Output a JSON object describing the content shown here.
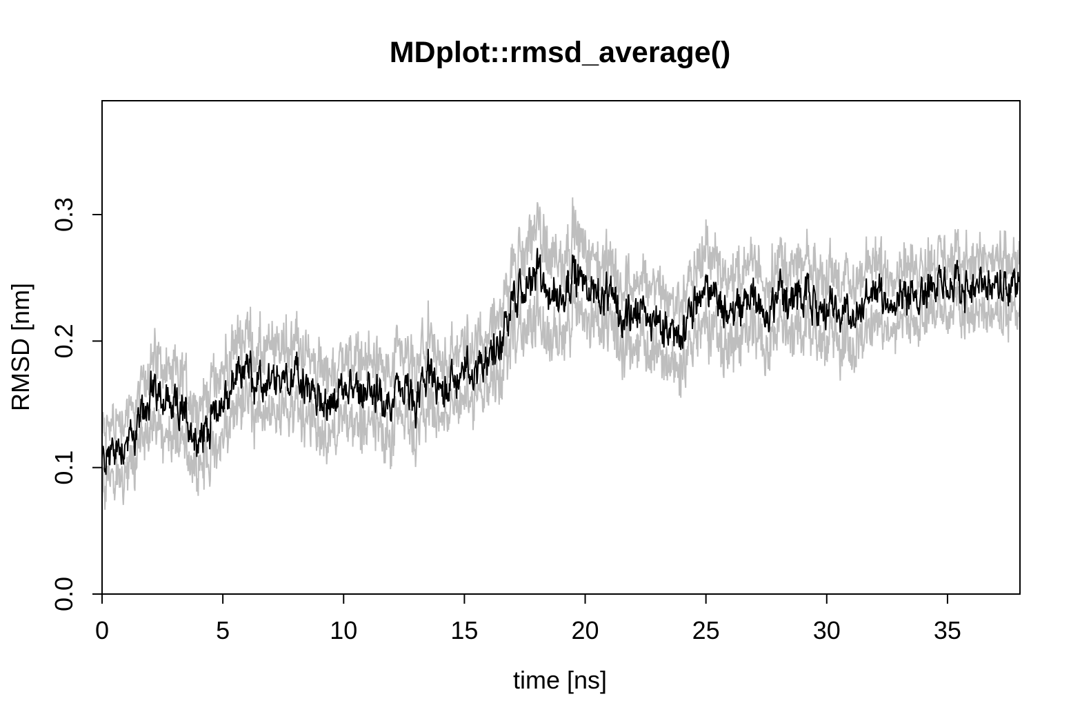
{
  "chart_data": {
    "type": "line",
    "title": "MDplot::rmsd_average()",
    "xlabel": "time [ns]",
    "ylabel": "RMSD [nm]",
    "xlim": [
      0,
      38
    ],
    "ylim": [
      0,
      0.39
    ],
    "x_ticks": [
      0,
      5,
      10,
      15,
      20,
      25,
      30,
      35
    ],
    "x_tick_labels": [
      "0",
      "5",
      "10",
      "15",
      "20",
      "25",
      "30",
      "35"
    ],
    "y_ticks": [
      0.0,
      0.1,
      0.2,
      0.3
    ],
    "y_tick_labels": [
      "0.0",
      "0.1",
      "0.2",
      "0.3"
    ],
    "grid": false,
    "colors": {
      "mean_line": "#000000",
      "spread_band": "#bebebe",
      "axes": "#000000"
    },
    "x": [
      0,
      0.5,
      1,
      1.5,
      2,
      2.5,
      3,
      3.5,
      4,
      4.5,
      5,
      5.5,
      6,
      6.5,
      7,
      7.5,
      8,
      8.5,
      9,
      9.5,
      10,
      10.5,
      11,
      11.5,
      12,
      12.5,
      13,
      13.5,
      14,
      14.5,
      15,
      15.5,
      16,
      16.5,
      17,
      17.5,
      18,
      18.5,
      19,
      19.5,
      20,
      20.5,
      21,
      21.5,
      22,
      22.5,
      23,
      23.5,
      24,
      24.5,
      25,
      25.5,
      26,
      26.5,
      27,
      27.5,
      28,
      28.5,
      29,
      29.5,
      30,
      30.5,
      31,
      31.5,
      32,
      32.5,
      33,
      33.5,
      34,
      34.5,
      35,
      35.5,
      36,
      36.5,
      37,
      37.5,
      38
    ],
    "series": [
      {
        "role": "mean",
        "values": [
          0.105,
          0.115,
          0.12,
          0.13,
          0.16,
          0.155,
          0.145,
          0.14,
          0.12,
          0.14,
          0.15,
          0.17,
          0.18,
          0.16,
          0.165,
          0.17,
          0.175,
          0.16,
          0.155,
          0.15,
          0.16,
          0.165,
          0.16,
          0.15,
          0.155,
          0.16,
          0.15,
          0.175,
          0.16,
          0.17,
          0.175,
          0.18,
          0.19,
          0.2,
          0.23,
          0.24,
          0.255,
          0.24,
          0.235,
          0.255,
          0.245,
          0.24,
          0.23,
          0.22,
          0.225,
          0.22,
          0.215,
          0.21,
          0.205,
          0.225,
          0.24,
          0.235,
          0.22,
          0.23,
          0.235,
          0.225,
          0.24,
          0.23,
          0.235,
          0.225,
          0.23,
          0.225,
          0.22,
          0.23,
          0.235,
          0.235,
          0.24,
          0.235,
          0.245,
          0.24,
          0.245,
          0.24,
          0.245,
          0.24,
          0.245,
          0.24,
          0.245
        ],
        "spread": [
          0.025,
          0.025,
          0.025,
          0.025,
          0.03,
          0.03,
          0.03,
          0.03,
          0.03,
          0.03,
          0.03,
          0.03,
          0.03,
          0.03,
          0.03,
          0.03,
          0.03,
          0.03,
          0.03,
          0.03,
          0.03,
          0.03,
          0.03,
          0.03,
          0.03,
          0.03,
          0.03,
          0.03,
          0.025,
          0.025,
          0.025,
          0.025,
          0.025,
          0.03,
          0.03,
          0.035,
          0.04,
          0.04,
          0.035,
          0.035,
          0.03,
          0.03,
          0.03,
          0.03,
          0.03,
          0.03,
          0.03,
          0.03,
          0.03,
          0.03,
          0.035,
          0.035,
          0.03,
          0.03,
          0.03,
          0.03,
          0.03,
          0.03,
          0.03,
          0.03,
          0.03,
          0.03,
          0.03,
          0.03,
          0.03,
          0.025,
          0.025,
          0.025,
          0.025,
          0.025,
          0.025,
          0.025,
          0.025,
          0.025,
          0.025,
          0.025,
          0.025
        ]
      }
    ]
  }
}
